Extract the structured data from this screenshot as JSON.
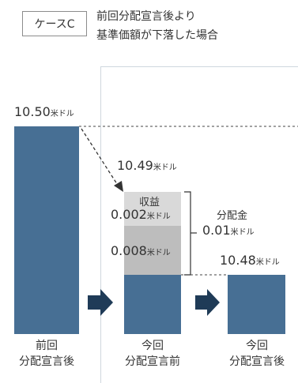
{
  "header": {
    "case_label": "ケースC",
    "title_line1": "前回分配宣言後より",
    "title_line2": "基準価額が下落した場合"
  },
  "values": {
    "prev_nav": "10.50",
    "before_nav": "10.49",
    "after_nav": "10.48",
    "income_label": "収益",
    "income_part1": "0.002",
    "income_part2": "0.008",
    "dividend_label": "分配金",
    "dividend_value": "0.01",
    "unit": "米ドル"
  },
  "xlabels": {
    "c1_line1": "前回",
    "c1_line2": "分配宣言後",
    "c2_line1": "今回",
    "c2_line2": "分配宣言前",
    "c3_line1": "今回",
    "c3_line2": "分配宣言後"
  },
  "colors": {
    "bar": "#476f94",
    "income_light": "#d9d9d9",
    "income_dark": "#bdbdbd",
    "arrow": "#1f3b57"
  }
}
